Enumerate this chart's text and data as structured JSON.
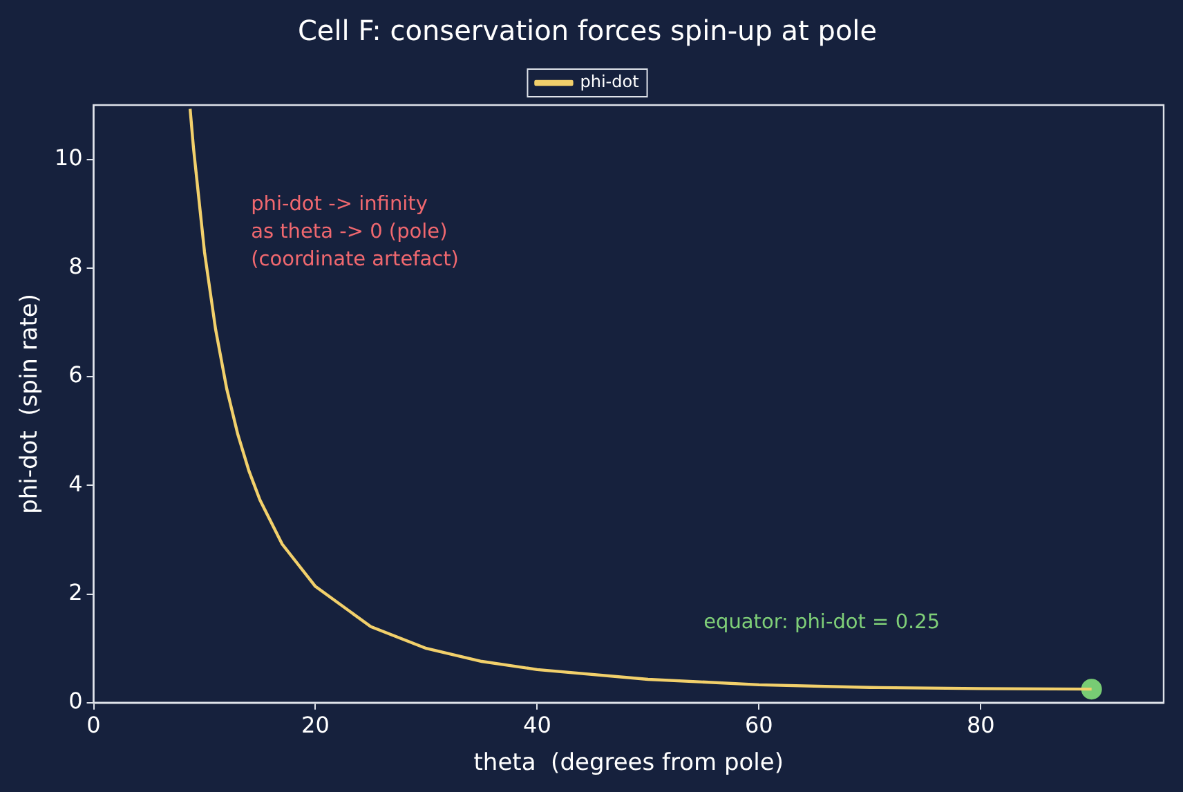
{
  "chart_data": {
    "type": "line",
    "title": "Cell F: conservation forces spin-up at pole",
    "xlabel": "theta  (degrees from pole)",
    "ylabel": "phi-dot  (spin rate)",
    "xlim": [
      0,
      96.5
    ],
    "ylim": [
      0,
      11
    ],
    "xticks": [
      0,
      20,
      40,
      60,
      80
    ],
    "yticks": [
      0,
      2,
      4,
      6,
      8,
      10
    ],
    "grid": false,
    "legend": "top",
    "marker": "none",
    "line_style": "solid",
    "series": [
      {
        "name": "phi-dot",
        "color": "#f2d06b",
        "x": [
          8.7,
          9,
          10,
          11,
          12,
          13,
          14,
          15,
          17,
          20,
          25,
          30,
          35,
          40,
          50,
          60,
          70,
          80,
          90
        ],
        "values": [
          10.93,
          10.22,
          8.29,
          6.87,
          5.78,
          4.94,
          4.27,
          3.73,
          2.92,
          2.14,
          1.4,
          1.0,
          0.76,
          0.61,
          0.43,
          0.33,
          0.28,
          0.26,
          0.25
        ]
      },
      {
        "type": "scatter",
        "color": "#78cc74",
        "marker": "circle",
        "x": [
          90
        ],
        "values": [
          0.25
        ]
      }
    ],
    "annotations": [
      "phi-dot -> infinity\nas theta -> 0 (pole)\n(coordinate artefact)",
      "equator: phi-dot = 0.25"
    ]
  }
}
